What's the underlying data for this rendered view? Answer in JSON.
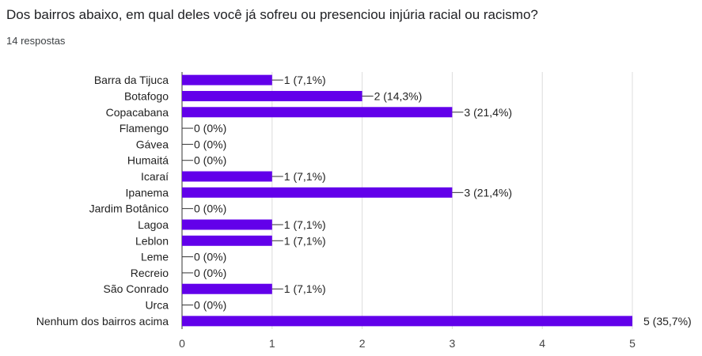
{
  "header": {
    "question": "Dos bairros abaixo, em qual deles você já sofreu ou presenciou injúria racial ou racismo?",
    "responses": "14 respostas"
  },
  "chart_data": {
    "type": "bar",
    "orientation": "horizontal",
    "categories": [
      "Barra da Tijuca",
      "Botafogo",
      "Copacabana",
      "Flamengo",
      "Gávea",
      "Humaitá",
      "Icaraí",
      "Ipanema",
      "Jardim Botânico",
      "Lagoa",
      "Leblon",
      "Leme",
      "Recreio",
      "São Conrado",
      "Urca",
      "Nenhum dos bairros acima"
    ],
    "values": [
      1,
      2,
      3,
      0,
      0,
      0,
      1,
      3,
      0,
      1,
      1,
      0,
      0,
      1,
      0,
      5
    ],
    "labels": [
      "1 (7,1%)",
      "2 (14,3%)",
      "3 (21,4%)",
      "0 (0%)",
      "0 (0%)",
      "0 (0%)",
      "1 (7,1%)",
      "3 (21,4%)",
      "0 (0%)",
      "1 (7,1%)",
      "1 (7,1%)",
      "0 (0%)",
      "0 (0%)",
      "1 (7,1%)",
      "0 (0%)",
      "5 (35,7%)"
    ],
    "xlim": [
      0,
      5
    ],
    "xticks": [
      "0",
      "1",
      "2",
      "3",
      "4",
      "5"
    ],
    "grid": true,
    "bar_color": "#6200ea"
  }
}
